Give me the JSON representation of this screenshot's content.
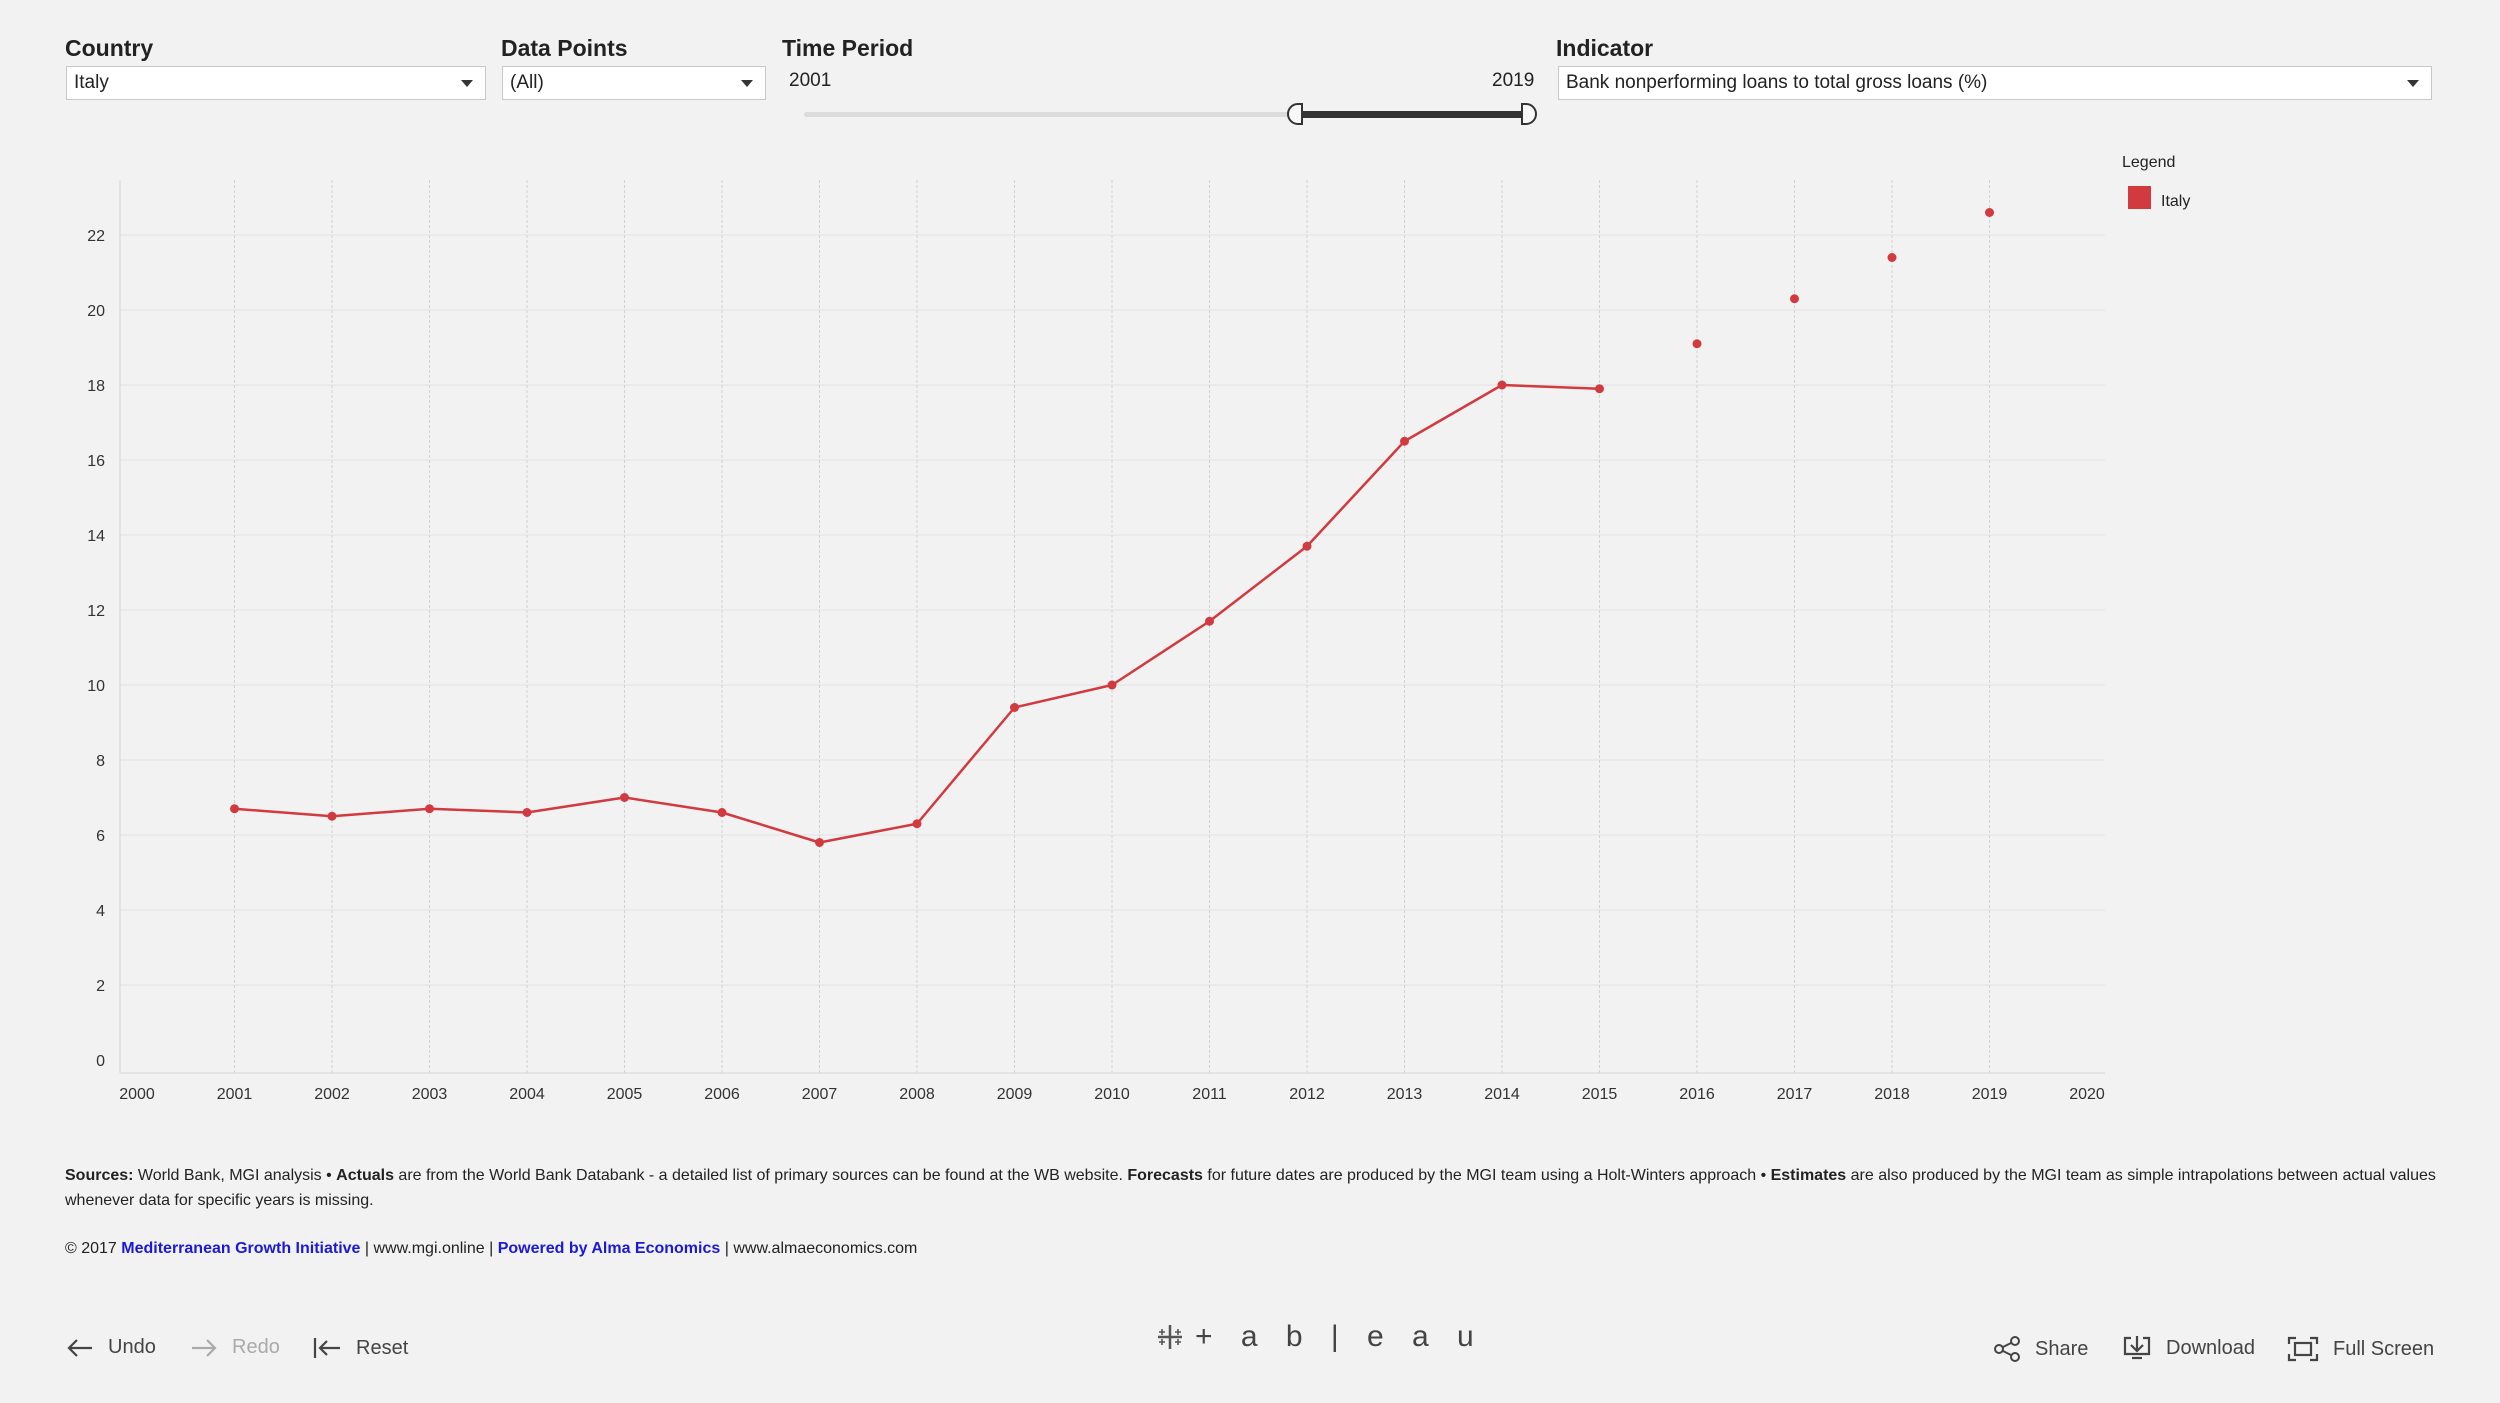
{
  "filters": {
    "country": {
      "title": "Country",
      "value": "Italy"
    },
    "data_points": {
      "title": "Data Points",
      "value": "(All)"
    },
    "time_period": {
      "title": "Time Period",
      "start": "2001",
      "end": "2019"
    },
    "indicator": {
      "title": "Indicator",
      "value": "Bank nonperforming loans to total gross loans (%)"
    }
  },
  "legend": {
    "title": "Legend",
    "items": [
      {
        "label": "Italy",
        "color": "#d13a3f"
      }
    ]
  },
  "chart_data": {
    "type": "line",
    "series_color": "#d13a3f",
    "x_ticks": [
      "2000",
      "2001",
      "2002",
      "2003",
      "2004",
      "2005",
      "2006",
      "2007",
      "2008",
      "2009",
      "2010",
      "2011",
      "2012",
      "2013",
      "2014",
      "2015",
      "2016",
      "2017",
      "2018",
      "2019",
      "2020"
    ],
    "y_ticks": [
      "0",
      "2",
      "4",
      "6",
      "8",
      "10",
      "12",
      "14",
      "16",
      "18",
      "20",
      "22"
    ],
    "xlim": [
      2000,
      2020
    ],
    "ylim": [
      0,
      24
    ],
    "grid": true,
    "legend_position": "top-right",
    "series": [
      {
        "name": "Italy",
        "actuals": [
          {
            "x": 2001,
            "y": 6.7
          },
          {
            "x": 2002,
            "y": 6.5
          },
          {
            "x": 2003,
            "y": 6.7
          },
          {
            "x": 2004,
            "y": 6.6
          },
          {
            "x": 2005,
            "y": 7.0
          },
          {
            "x": 2006,
            "y": 6.6
          },
          {
            "x": 2007,
            "y": 5.8
          },
          {
            "x": 2008,
            "y": 6.3
          },
          {
            "x": 2009,
            "y": 9.4
          },
          {
            "x": 2010,
            "y": 10.0
          },
          {
            "x": 2011,
            "y": 11.7
          },
          {
            "x": 2012,
            "y": 13.7
          },
          {
            "x": 2013,
            "y": 16.5
          },
          {
            "x": 2014,
            "y": 18.0
          },
          {
            "x": 2015,
            "y": 17.9
          }
        ],
        "forecasts": [
          {
            "x": 2016,
            "y": 19.1
          },
          {
            "x": 2017,
            "y": 20.3
          },
          {
            "x": 2018,
            "y": 21.4
          },
          {
            "x": 2019,
            "y": 22.6
          }
        ]
      }
    ]
  },
  "sources": {
    "label": "Sources:",
    "text1": " World Bank, MGI analysis • ",
    "actuals_label": "Actuals",
    "text2": " are from the World Bank Databank - a detailed list of primary sources can be found at the WB website. ",
    "forecasts_label": "Forecasts",
    "text3": " for future dates are produced by the MGI team using a Holt-Winters approach • ",
    "estimates_label": "Estimates",
    "text4": " are also produced by the MGI team as simple intrapolations between actual values whenever data for specific years is missing."
  },
  "copyright": {
    "prefix": "© 2017 ",
    "mgi_link": "Mediterranean Growth Initiative",
    "sep1": " | www.mgi.online | ",
    "alma_link": "Powered by Alma Economics",
    "sep2": " | www.almaeconomics.com"
  },
  "toolbar": {
    "undo": "Undo",
    "redo": "Redo",
    "reset": "Reset",
    "logo": "+ a b | e a u",
    "share": "Share",
    "download": "Download",
    "fullscreen": "Full Screen"
  }
}
